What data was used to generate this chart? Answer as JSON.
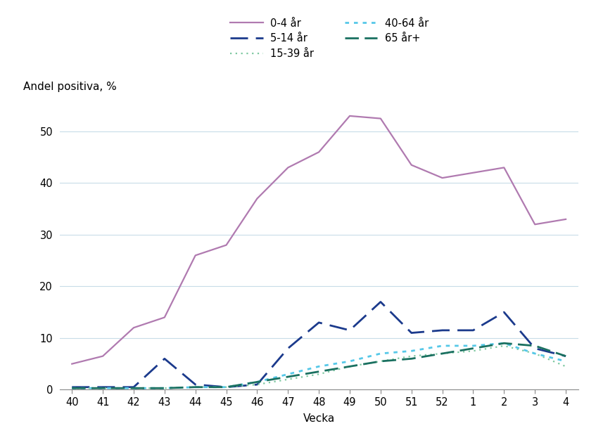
{
  "x_labels": [
    "40",
    "41",
    "42",
    "43",
    "44",
    "45",
    "46",
    "47",
    "48",
    "49",
    "50",
    "51",
    "52",
    "1",
    "2",
    "3",
    "4"
  ],
  "x_positions": [
    0,
    1,
    2,
    3,
    4,
    5,
    6,
    7,
    8,
    9,
    10,
    11,
    12,
    13,
    14,
    15,
    16
  ],
  "series": {
    "0-4 år": {
      "values": [
        5.0,
        6.5,
        12.0,
        14.0,
        26.0,
        28.0,
        37.0,
        43.0,
        46.0,
        53.0,
        52.5,
        43.5,
        41.0,
        42.0,
        43.0,
        32.0,
        33.0
      ],
      "color": "#b07ab0"
    },
    "5-14 år": {
      "values": [
        0.5,
        0.5,
        0.5,
        6.0,
        1.0,
        0.5,
        1.0,
        8.0,
        13.0,
        11.5,
        17.0,
        11.0,
        11.5,
        11.5,
        15.0,
        8.0,
        6.5
      ],
      "color": "#1b3a8c"
    },
    "15-39 år": {
      "values": [
        0.3,
        0.3,
        0.3,
        0.3,
        0.5,
        0.5,
        1.0,
        2.0,
        3.0,
        4.5,
        5.5,
        6.5,
        7.0,
        7.5,
        8.5,
        7.0,
        4.5
      ],
      "color": "#7dc8a0"
    },
    "40-64 år": {
      "values": [
        0.3,
        0.3,
        0.3,
        0.3,
        0.5,
        0.5,
        1.5,
        3.0,
        4.5,
        5.5,
        7.0,
        7.5,
        8.5,
        8.5,
        9.0,
        7.0,
        5.5
      ],
      "color": "#56c8e8"
    },
    "65 år+": {
      "values": [
        0.3,
        0.3,
        0.3,
        0.3,
        0.5,
        0.5,
        1.5,
        2.5,
        3.5,
        4.5,
        5.5,
        6.0,
        7.0,
        8.0,
        9.0,
        8.5,
        6.5
      ],
      "color": "#1a7060"
    }
  },
  "legend_order": [
    "0-4 år",
    "5-14 år",
    "15-39 år",
    "40-64 år",
    "65 år+"
  ],
  "ylabel_text": "Andel positiva, %",
  "xlabel": "Vecka",
  "ylim": [
    0,
    57
  ],
  "yticks": [
    0,
    10,
    20,
    30,
    40,
    50
  ],
  "background_color": "#ffffff",
  "grid_color": "#c8dce8",
  "axis_fontsize": 11,
  "tick_fontsize": 10.5,
  "legend_fontsize": 10.5
}
